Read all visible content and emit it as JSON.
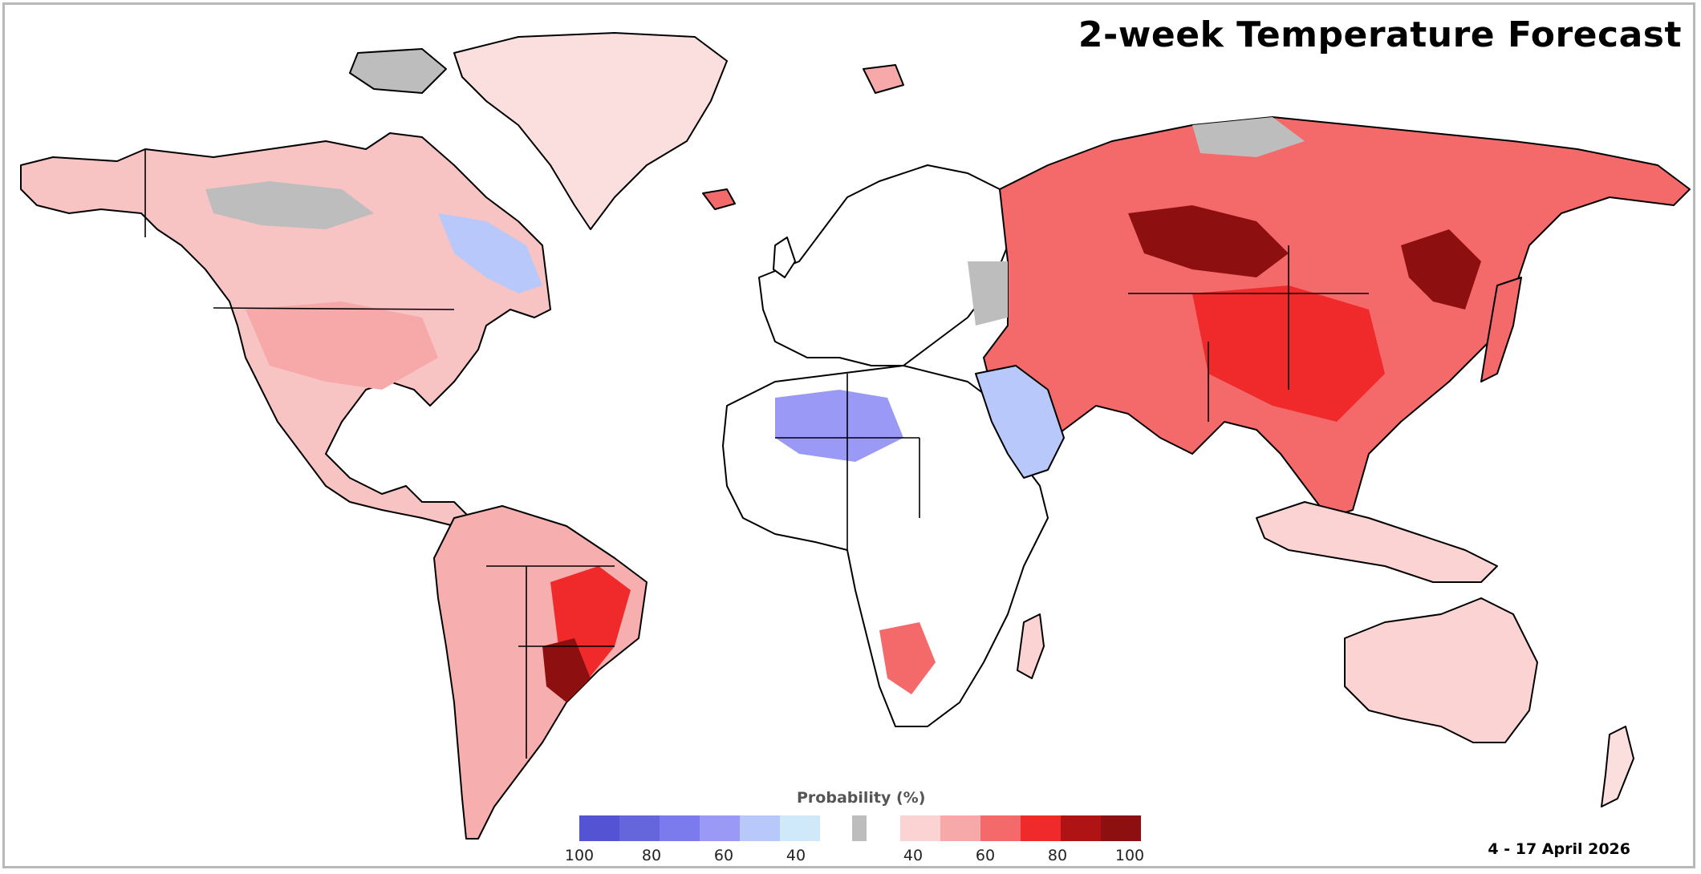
{
  "title": "2-week Temperature Forecast",
  "date_range": "4 - 17 April 2026",
  "legend": {
    "title": "Probability (%)",
    "below_normal": {
      "colors": [
        "#5353d4",
        "#6565dc",
        "#7b7bee",
        "#9a9af6",
        "#b9c8fa",
        "#cfe9fb"
      ],
      "ticks": [
        "100",
        "80",
        "60",
        "40"
      ]
    },
    "near_normal": {
      "color": "#bdbdbd"
    },
    "above_normal": {
      "colors": [
        "#fbd3d3",
        "#f7a8a8",
        "#f46a6a",
        "#f02a2a",
        "#b01313",
        "#8e0f0f"
      ],
      "ticks": [
        "40",
        "60",
        "80",
        "100"
      ]
    }
  },
  "colors": {
    "frame": "#b8b8b8",
    "land_outline": "#000000",
    "warm_light": "#fbd3d3",
    "warm_mid": "#f46a6a",
    "warm_strong": "#f02a2a",
    "warm_extreme": "#8e0f0f",
    "cool_light": "#cfe9fb",
    "cool_mid": "#9a9af6",
    "normal_gray": "#bdbdbd"
  }
}
